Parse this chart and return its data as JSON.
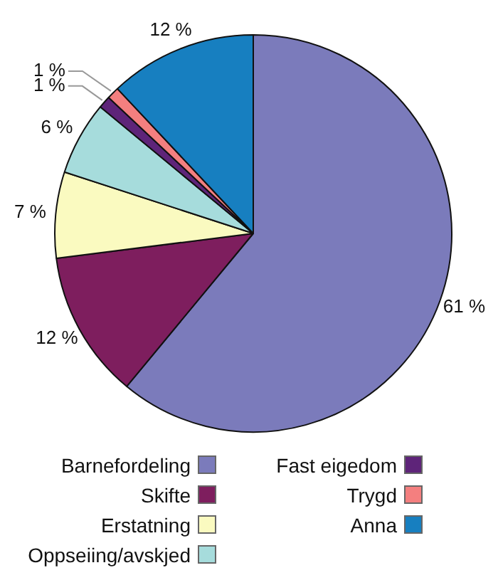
{
  "chart_data": {
    "type": "pie",
    "categories": [
      "Barnefordeling",
      "Skifte",
      "Erstatning",
      "Oppseiing/avskjed",
      "Fast eigedom",
      "Trygd",
      "Anna"
    ],
    "values": [
      61,
      12,
      7,
      6,
      1,
      1,
      12
    ],
    "colors": [
      "#7b7bbb",
      "#7e1e5e",
      "#fafac0",
      "#a6dcdc",
      "#5e2479",
      "#f47f7f",
      "#177fc0"
    ],
    "value_labels": [
      "61 %",
      "12 %",
      "7 %",
      "6 %",
      "1 %",
      "1 %",
      "12 %"
    ],
    "legend": "bottom"
  }
}
